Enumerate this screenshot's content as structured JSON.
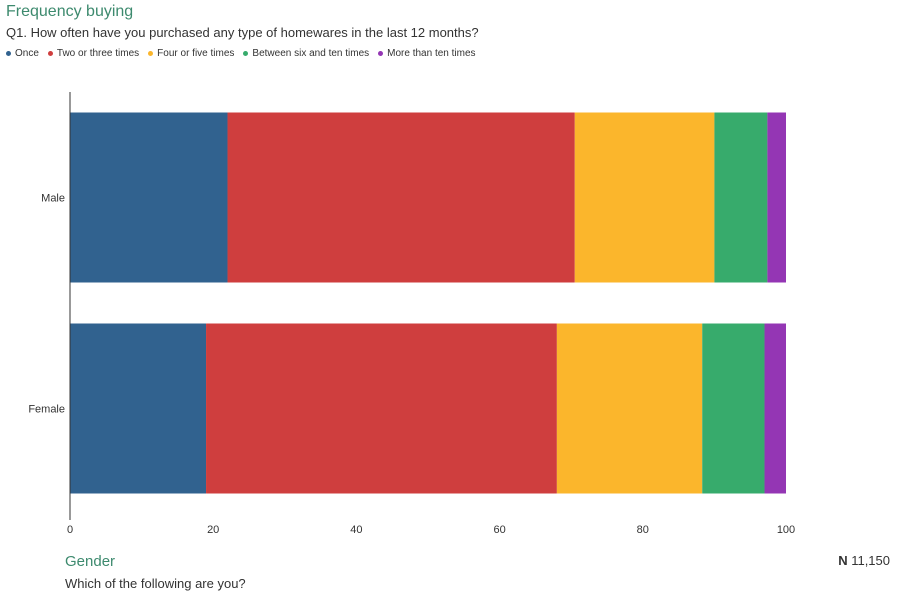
{
  "header": {
    "title": "Frequency buying",
    "subtitle": "Q1. How often have you purchased any type of homewares in the last 12 months?"
  },
  "footer": {
    "title": "Gender",
    "subtitle": "Which of the following are you?",
    "n_label": "N",
    "n_value": "11,150"
  },
  "chart_data": {
    "type": "bar",
    "orientation": "horizontal",
    "stacked": true,
    "categories": [
      "Male",
      "Female"
    ],
    "series": [
      {
        "name": "Once",
        "color": "#31628f",
        "values": [
          22,
          19
        ]
      },
      {
        "name": "Two or three times",
        "color": "#cf3e3e",
        "values": [
          48.5,
          49
        ]
      },
      {
        "name": "Four or five times",
        "color": "#fbb62c",
        "values": [
          19.5,
          20.3
        ]
      },
      {
        "name": "Between six and ten times",
        "color": "#37ab6c",
        "values": [
          7.4,
          8.7
        ]
      },
      {
        "name": "More than ten times",
        "color": "#9436b4",
        "values": [
          2.6,
          3.0
        ]
      }
    ],
    "xlim": [
      0,
      100
    ],
    "xticks": [
      0,
      20,
      40,
      60,
      80,
      100
    ],
    "grid": false,
    "legend": "top-left"
  }
}
